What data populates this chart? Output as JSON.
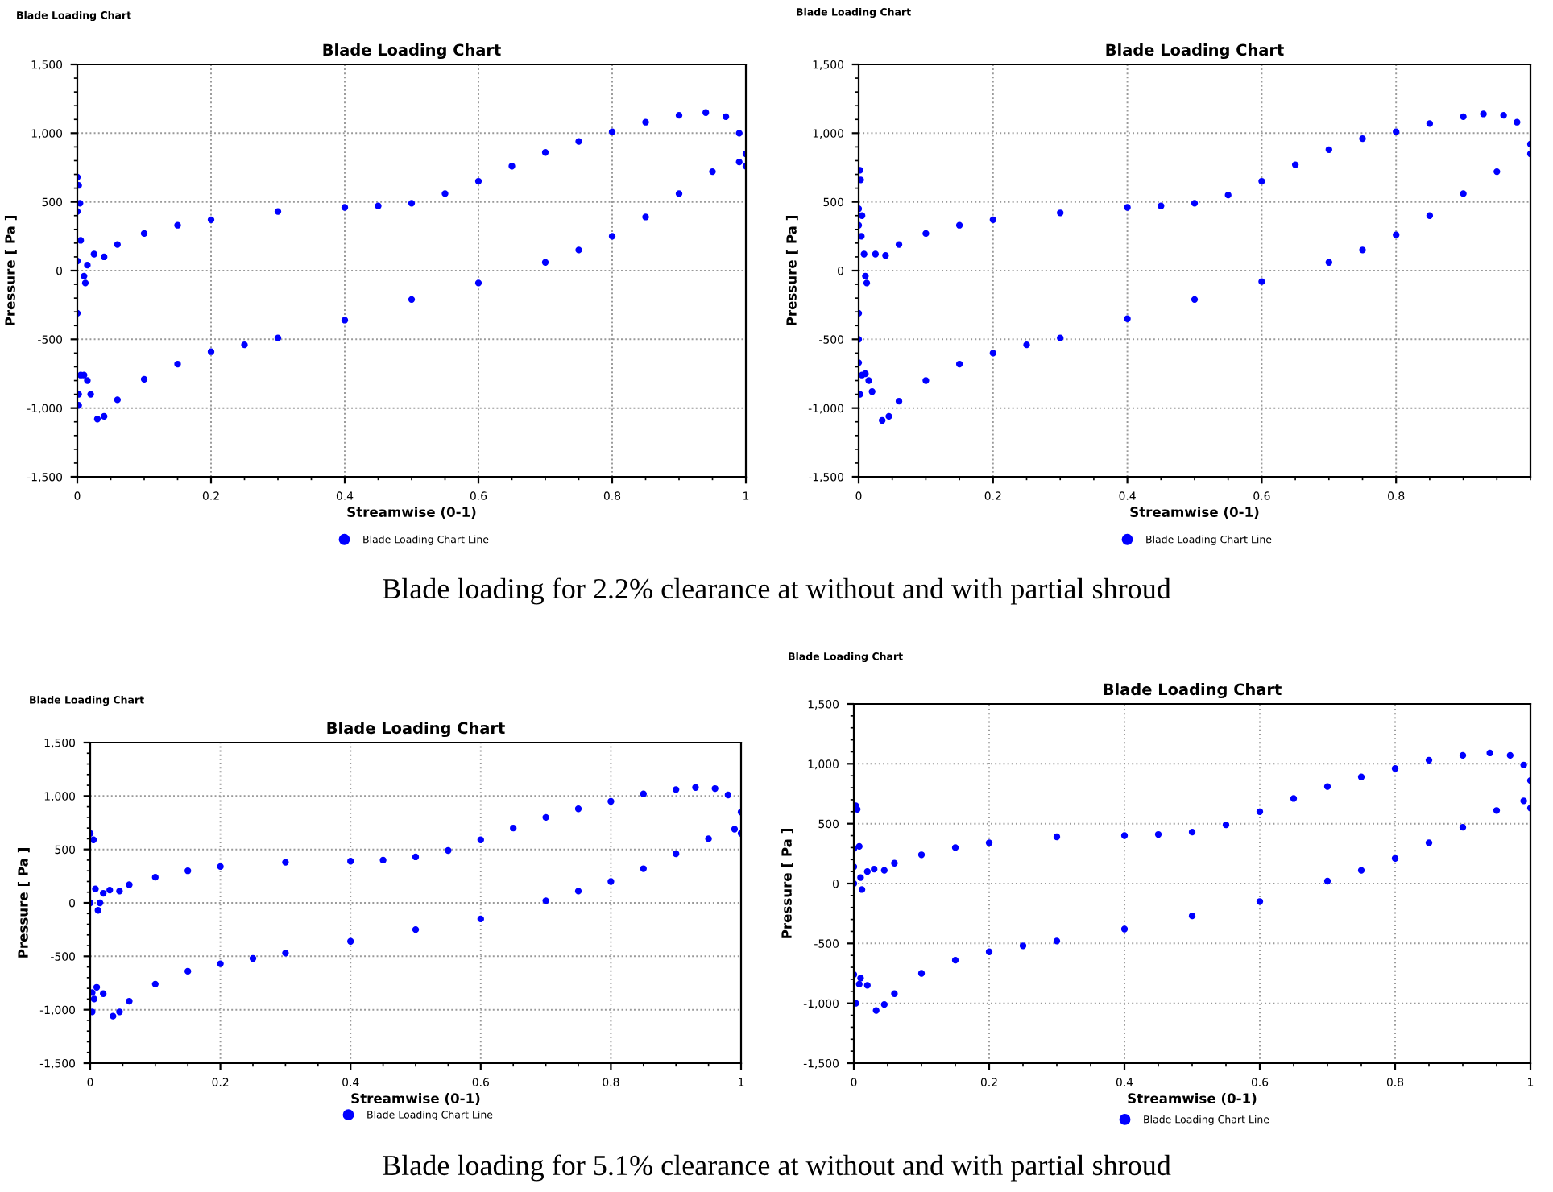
{
  "chart_data": [
    {
      "type": "scatter",
      "title": "Blade Loading Chart",
      "xlabel": "Streamwise (0-1)",
      "ylabel": "Pressure [ Pa ]",
      "xlim": [
        0,
        1
      ],
      "ylim": [
        -1500,
        1500
      ],
      "xticks": [
        0,
        0.2,
        0.4,
        0.6,
        0.8,
        1
      ],
      "yticks": [
        {
          "value": -1500,
          "label": "-1,500"
        },
        {
          "value": -1000,
          "label": "-1,000"
        },
        -500,
        0,
        500,
        {
          "value": 1000,
          "label": "1,000"
        },
        {
          "value": 1500,
          "label": "1,500"
        }
      ],
      "grid": true,
      "legend": "bottom",
      "marker": "circle",
      "annotations": [
        "Blade Loading Chart",
        "Blade loading for 2.2% clearance at without and with partial shroud"
      ],
      "series": [
        {
          "name": "Blade Loading Chart Line",
          "color": "#0000ff",
          "x": [
            0,
            0.002,
            0.004,
            0,
            0.005,
            0,
            0.01,
            0.012,
            0.015,
            0,
            0.002,
            0.002,
            0.005,
            0.025,
            0.04,
            0.06,
            0.1,
            0.15,
            0.2,
            0.3,
            0.4,
            0.45,
            0.5,
            0.55,
            0.6,
            0.65,
            0.7,
            0.75,
            0.8,
            0.85,
            0.9,
            0.94,
            0.97,
            0.99,
            1.0,
            1.0,
            0.01,
            0.015,
            0.02,
            0.03,
            0.04,
            0.06,
            0.1,
            0.15,
            0.2,
            0.25,
            0.3,
            0.4,
            0.5,
            0.6,
            0.7,
            0.75,
            0.8,
            0.85,
            0.9,
            0.95,
            0.99
          ],
          "values": [
            680,
            620,
            490,
            430,
            220,
            70,
            -40,
            -90,
            40,
            -310,
            -900,
            -980,
            -760,
            120,
            100,
            190,
            270,
            330,
            370,
            430,
            460,
            470,
            490,
            560,
            650,
            760,
            860,
            940,
            1010,
            1080,
            1130,
            1150,
            1120,
            1000,
            850,
            760,
            -760,
            -800,
            -900,
            -1080,
            -1060,
            -940,
            -790,
            -680,
            -590,
            -540,
            -490,
            -360,
            -210,
            -90,
            60,
            150,
            250,
            390,
            560,
            720,
            790
          ]
        }
      ]
    },
    {
      "type": "scatter",
      "title": "Blade Loading Chart",
      "xlabel": "Streamwise (0-1)",
      "ylabel": "Pressure [ Pa ]",
      "xlim": [
        0,
        1
      ],
      "ylim": [
        -1500,
        1500
      ],
      "xticks": [
        0,
        0.2,
        0.4,
        0.6,
        0.8
      ],
      "yticks": [
        {
          "value": -1500,
          "label": "-1,500"
        },
        {
          "value": -1000,
          "label": "-1,000"
        },
        -500,
        0,
        500,
        {
          "value": 1000,
          "label": "1,000"
        },
        {
          "value": 1500,
          "label": "1,500"
        }
      ],
      "grid": true,
      "legend": "bottom",
      "marker": "circle",
      "annotations": [
        "Blade Loading Chart"
      ],
      "series": [
        {
          "name": "Blade Loading Chart Line",
          "color": "#0000ff",
          "x": [
            0.002,
            0.003,
            0,
            0.005,
            0,
            0.004,
            0.008,
            0.01,
            0.012,
            0,
            0,
            0,
            0.002,
            0.005,
            0.025,
            0.04,
            0.06,
            0.1,
            0.15,
            0.2,
            0.3,
            0.4,
            0.45,
            0.5,
            0.55,
            0.6,
            0.65,
            0.7,
            0.75,
            0.8,
            0.85,
            0.9,
            0.93,
            0.96,
            0.98,
            1.0,
            0.01,
            0.015,
            0.02,
            0.035,
            0.045,
            0.06,
            0.1,
            0.15,
            0.2,
            0.25,
            0.3,
            0.4,
            0.5,
            0.6,
            0.7,
            0.75,
            0.8,
            0.85,
            0.9,
            0.95,
            1.0
          ],
          "values": [
            730,
            660,
            450,
            400,
            330,
            250,
            120,
            -40,
            -90,
            -310,
            -500,
            -670,
            -900,
            -760,
            120,
            110,
            190,
            270,
            330,
            370,
            420,
            460,
            470,
            490,
            550,
            650,
            770,
            880,
            960,
            1010,
            1070,
            1120,
            1140,
            1130,
            1080,
            920,
            -750,
            -800,
            -880,
            -1090,
            -1060,
            -950,
            -800,
            -680,
            -600,
            -540,
            -490,
            -350,
            -210,
            -80,
            60,
            150,
            260,
            400,
            560,
            720,
            850
          ]
        }
      ]
    },
    {
      "type": "scatter",
      "title": "Blade Loading Chart",
      "xlabel": "Streamwise (0-1)",
      "ylabel": "Pressure [ Pa ]",
      "xlim": [
        0,
        1
      ],
      "ylim": [
        -1500,
        1500
      ],
      "xticks": [
        0,
        0.2,
        0.4,
        0.6,
        0.8,
        1
      ],
      "yticks": [
        {
          "value": -1500,
          "label": "-1,500"
        },
        {
          "value": -1000,
          "label": "-1,000"
        },
        -500,
        0,
        500,
        {
          "value": 1000,
          "label": "1,000"
        },
        {
          "value": 1500,
          "label": "1,500"
        }
      ],
      "grid": true,
      "legend": "bottom",
      "marker": "circle",
      "annotations": [
        "Blade Loading Chart",
        "Blade loading for 5.1% clearance at without and with partial shroud"
      ],
      "series": [
        {
          "name": "Blade Loading Chart Line",
          "color": "#0000ff",
          "x": [
            0,
            0.005,
            0,
            0.008,
            0.012,
            0.015,
            0.003,
            0.006,
            0.003,
            0.02,
            0.03,
            0.045,
            0.06,
            0.1,
            0.15,
            0.2,
            0.3,
            0.4,
            0.45,
            0.5,
            0.55,
            0.6,
            0.65,
            0.7,
            0.75,
            0.8,
            0.85,
            0.9,
            0.93,
            0.96,
            0.98,
            1.0,
            1.0,
            0.01,
            0.02,
            0.035,
            0.045,
            0.06,
            0.1,
            0.15,
            0.2,
            0.25,
            0.3,
            0.4,
            0.5,
            0.6,
            0.7,
            0.75,
            0.8,
            0.85,
            0.9,
            0.95,
            0.99
          ],
          "values": [
            650,
            590,
            0,
            130,
            -70,
            0,
            -840,
            -900,
            -1020,
            90,
            120,
            110,
            170,
            240,
            300,
            340,
            380,
            390,
            400,
            430,
            490,
            590,
            700,
            800,
            880,
            950,
            1020,
            1060,
            1080,
            1070,
            1010,
            850,
            650,
            -790,
            -850,
            -1060,
            -1020,
            -920,
            -760,
            -640,
            -570,
            -520,
            -470,
            -360,
            -250,
            -150,
            20,
            110,
            200,
            320,
            460,
            600,
            690
          ]
        }
      ]
    },
    {
      "type": "scatter",
      "title": "Blade Loading Chart",
      "xlabel": "Streamwise (0-1)",
      "ylabel": "Pressure [ Pa ]",
      "xlim": [
        0,
        1
      ],
      "ylim": [
        -1500,
        1500
      ],
      "xticks": [
        0,
        0.2,
        0.4,
        0.6,
        0.8,
        1
      ],
      "yticks": [
        {
          "value": -1500,
          "label": "-1,500"
        },
        {
          "value": -1000,
          "label": "-1,000"
        },
        -500,
        0,
        500,
        {
          "value": 1000,
          "label": "1,000"
        },
        {
          "value": 1500,
          "label": "1,500"
        }
      ],
      "grid": true,
      "legend": "bottom",
      "marker": "circle",
      "annotations": [
        "Blade Loading Chart"
      ],
      "series": [
        {
          "name": "Blade Loading Chart Line",
          "color": "#0000ff",
          "x": [
            0.003,
            0.005,
            0,
            0.008,
            0,
            0,
            0.01,
            0.012,
            0,
            0.008,
            0.003,
            0.02,
            0.03,
            0.045,
            0.06,
            0.1,
            0.15,
            0.2,
            0.3,
            0.4,
            0.45,
            0.5,
            0.55,
            0.6,
            0.65,
            0.7,
            0.75,
            0.8,
            0.85,
            0.9,
            0.94,
            0.97,
            0.99,
            1.0,
            1.0,
            0.01,
            0.02,
            0.033,
            0.045,
            0.06,
            0.1,
            0.15,
            0.2,
            0.25,
            0.3,
            0.4,
            0.5,
            0.6,
            0.7,
            0.75,
            0.8,
            0.85,
            0.9,
            0.95,
            0.99
          ],
          "values": [
            650,
            620,
            290,
            310,
            140,
            0,
            50,
            -50,
            -760,
            -840,
            -1000,
            100,
            120,
            110,
            170,
            240,
            300,
            340,
            390,
            400,
            410,
            430,
            490,
            600,
            710,
            810,
            890,
            960,
            1030,
            1070,
            1090,
            1070,
            990,
            860,
            630,
            -790,
            -850,
            -1060,
            -1010,
            -920,
            -750,
            -640,
            -570,
            -520,
            -480,
            -380,
            -270,
            -150,
            20,
            110,
            210,
            340,
            470,
            610,
            690
          ]
        }
      ]
    }
  ]
}
